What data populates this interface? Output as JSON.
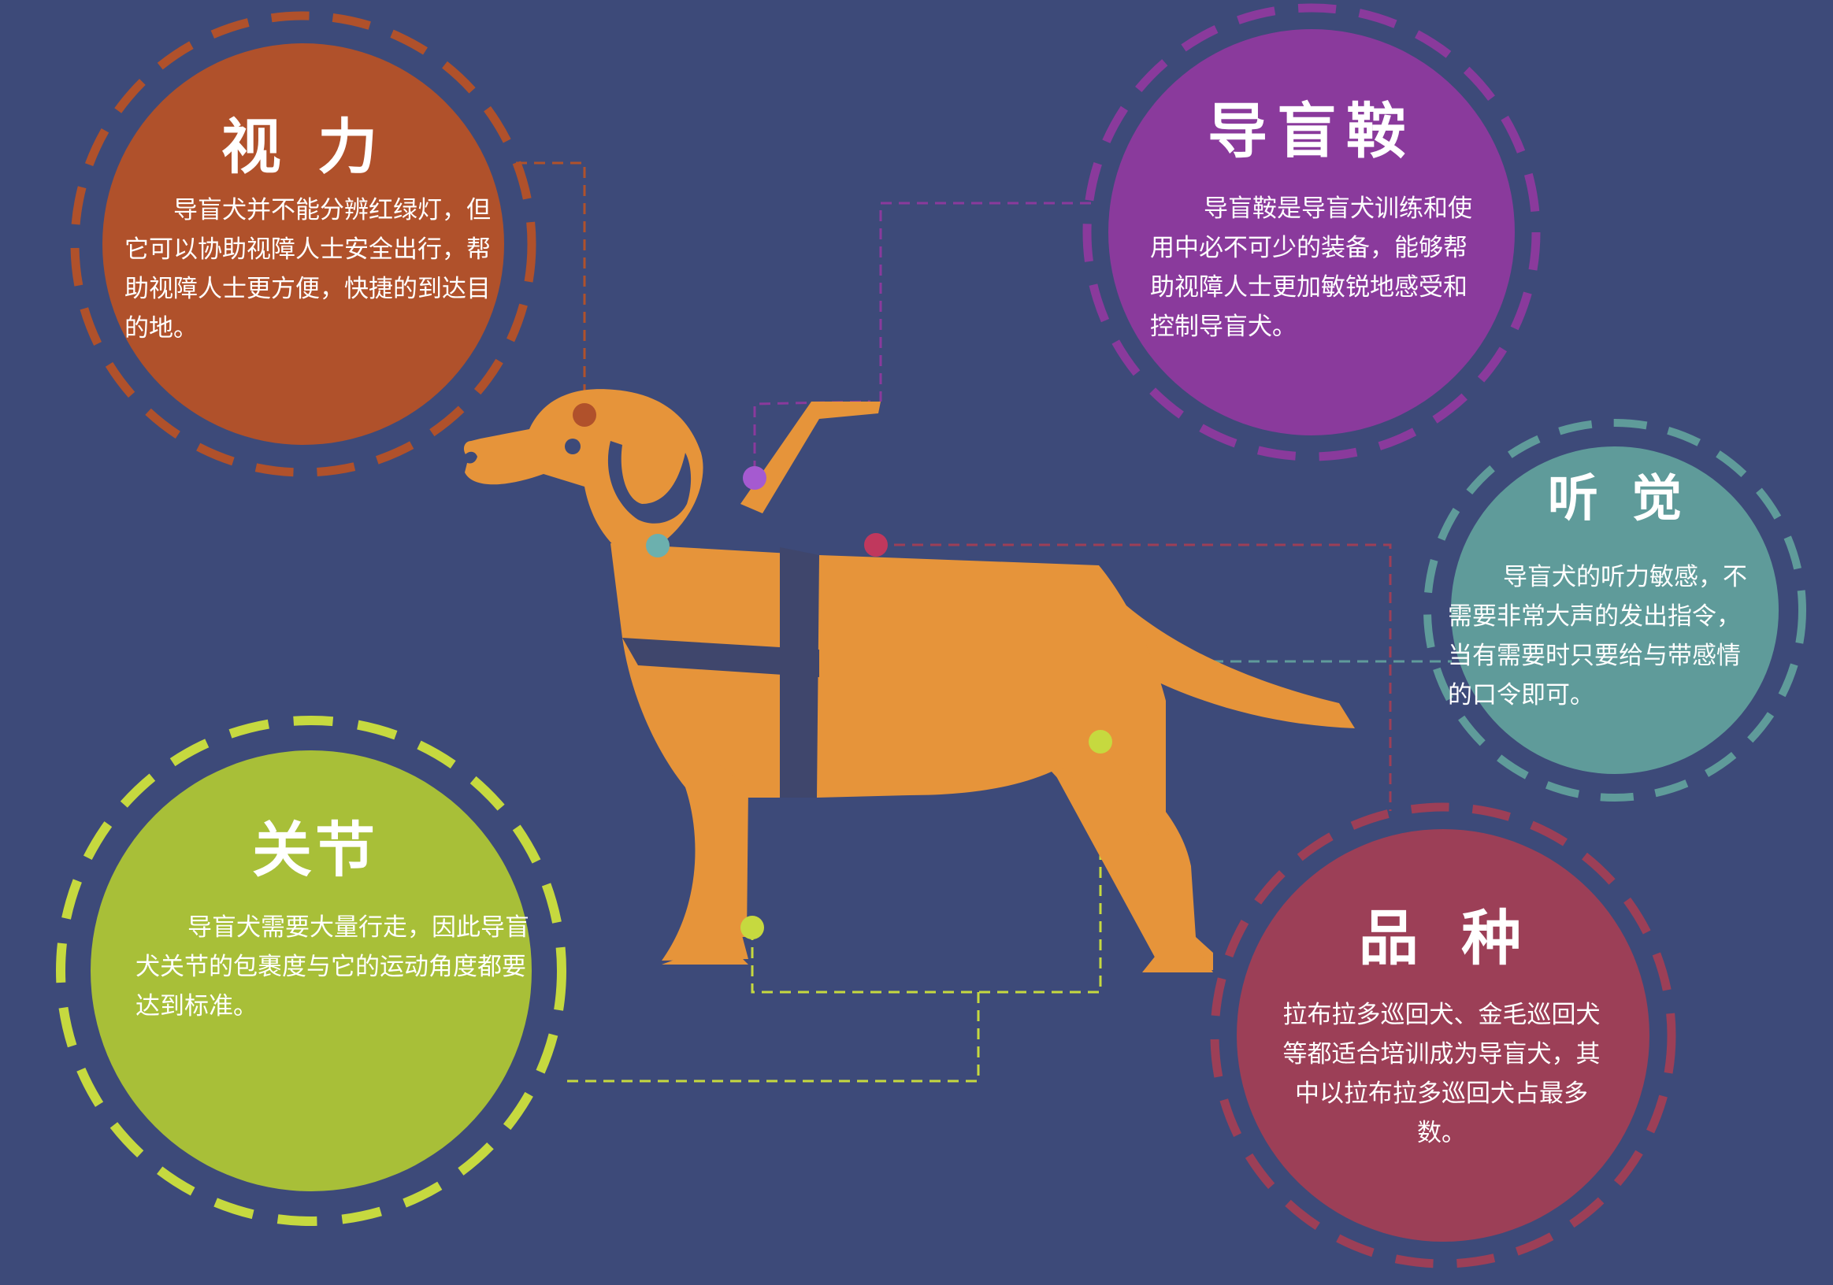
{
  "colors": {
    "background": "#3d4a79",
    "dog": "#e6943a",
    "harness": "#3f466c",
    "vision": "#b0512b",
    "saddle": "#8a3a9c",
    "hearing": "#5f9b9a",
    "joints": "#a8bf38",
    "breed": "#9c3f57"
  },
  "sections": {
    "vision": {
      "title": "视 力",
      "body": "导盲犬并不能分辨红绿灯，但它可以协助视障人士安全出行，帮助视障人士更方便，快捷的到达目的地。"
    },
    "saddle": {
      "title": "导盲鞍",
      "body": "导盲鞍是导盲犬训练和使用中必不可少的装备，能够帮助视障人士更加敏锐地感受和控制导盲犬。"
    },
    "hearing": {
      "title": "听 觉",
      "body": "导盲犬的听力敏感，不需要非常大声的发出指令，当有需要时只要给与带感情的口令即可。"
    },
    "joints": {
      "title": "关节",
      "body": "导盲犬需要大量行走，因此导盲犬关节的包裹度与它的运动角度都要达到标准。"
    },
    "breed": {
      "title": "品 种",
      "body": "拉布拉多巡回犬、金毛巡回犬等都适合培训成为导盲犬，其中以拉布拉多巡回犬占最多数。"
    }
  }
}
